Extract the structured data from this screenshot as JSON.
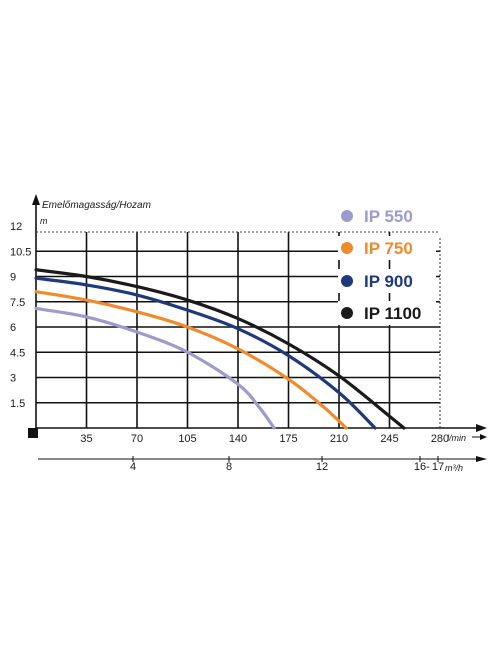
{
  "chart_data": {
    "type": "line",
    "ylabel": "Emelőmagasság/Hozam",
    "y_unit": "m",
    "x_unit": "l/min",
    "x2_unit": "m³/h",
    "ylim": [
      0,
      12
    ],
    "xlim": [
      0,
      280
    ],
    "y_ticks": [
      "1.5",
      "3",
      "4.5",
      "6",
      "7.5",
      "9",
      "10.5",
      "12"
    ],
    "x_ticks": [
      "35",
      "70",
      "105",
      "140",
      "175",
      "210",
      "245",
      "280"
    ],
    "x2_ticks": [
      "4",
      "8",
      "12",
      "16",
      "17"
    ],
    "grid": true,
    "legend_position": "top-right",
    "series": [
      {
        "name": "IP 550",
        "color": "#9b9ccc",
        "x": [
          0,
          35,
          70,
          105,
          140,
          155,
          165
        ],
        "y": [
          7.1,
          6.6,
          5.7,
          4.5,
          2.6,
          1.2,
          0
        ]
      },
      {
        "name": "IP 750",
        "color": "#f08a2c",
        "x": [
          0,
          35,
          70,
          105,
          140,
          175,
          200,
          215
        ],
        "y": [
          8.1,
          7.6,
          6.9,
          6.0,
          4.7,
          2.9,
          1.2,
          0
        ]
      },
      {
        "name": "IP 900",
        "color": "#1f3a7a",
        "x": [
          0,
          35,
          70,
          105,
          140,
          175,
          210,
          235
        ],
        "y": [
          8.9,
          8.5,
          7.9,
          7.0,
          5.9,
          4.3,
          2.1,
          0
        ]
      },
      {
        "name": "IP 1100",
        "color": "#1a1a1a",
        "x": [
          0,
          35,
          70,
          105,
          140,
          175,
          210,
          245,
          255
        ],
        "y": [
          9.4,
          9.0,
          8.4,
          7.6,
          6.5,
          5.0,
          3.1,
          0.7,
          0
        ]
      }
    ]
  }
}
